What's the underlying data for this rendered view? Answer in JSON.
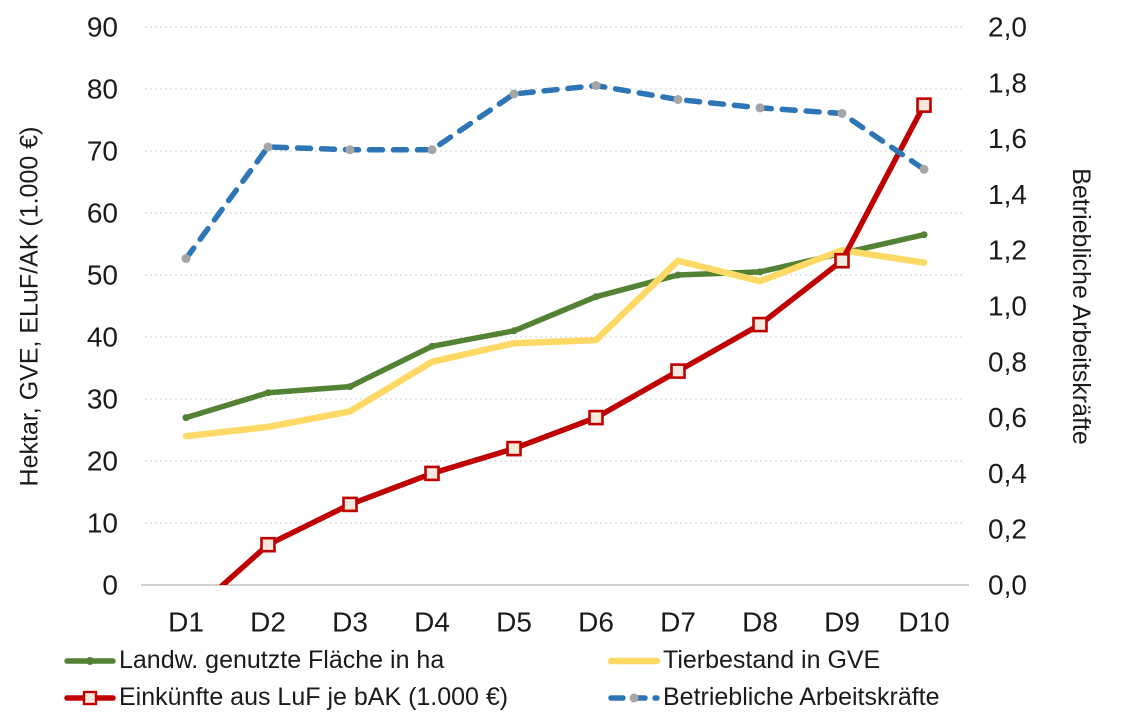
{
  "chart_data": {
    "type": "line",
    "categories": [
      "D1",
      "D2",
      "D3",
      "D4",
      "D5",
      "D6",
      "D7",
      "D8",
      "D9",
      "D10"
    ],
    "series": [
      {
        "name": "Landw. genutzte Fläche in ha",
        "axis": "left",
        "color": "#548235",
        "line_style": "solid",
        "marker": "dot",
        "values": [
          27,
          31,
          32,
          38.5,
          41,
          46.5,
          50,
          50.5,
          53.5,
          56.5
        ]
      },
      {
        "name": "Tierbestand in GVE",
        "axis": "left",
        "color": "#FFD966",
        "line_style": "solid",
        "marker": "none",
        "values": [
          24,
          25.5,
          28,
          36,
          39,
          39.5,
          52.3,
          49,
          54,
          52
        ]
      },
      {
        "name": "Einkünfte aus LuF je bAK (1.000 €)",
        "axis": "left",
        "color": "#C00000",
        "line_style": "solid",
        "marker": "square",
        "marker_fill": "#F5E9DE",
        "values": [
          -5.3,
          6.5,
          13,
          18,
          22,
          27,
          34.5,
          42,
          52.3,
          77.4
        ]
      },
      {
        "name": "Betriebliche Arbeitskräfte",
        "axis": "right",
        "color": "#2E75B6",
        "line_style": "dashed",
        "marker": "gray-dot",
        "marker_color": "#A6A6A6",
        "values": [
          1.17,
          1.57,
          1.56,
          1.56,
          1.76,
          1.79,
          1.74,
          1.71,
          1.69,
          1.49
        ]
      }
    ],
    "left_axis": {
      "title": "Hektar, GVE, ELuF/AK (1.000 €)",
      "min": 0,
      "max": 90,
      "step": 10,
      "tick_labels": [
        "0",
        "10",
        "20",
        "30",
        "40",
        "50",
        "60",
        "70",
        "80",
        "90"
      ]
    },
    "right_axis": {
      "title": "Betriebliche Arbeitskräfte",
      "min": 0.0,
      "max": 2.0,
      "step": 0.2,
      "tick_labels": [
        "0,0",
        "0,2",
        "0,4",
        "0,6",
        "0,8",
        "1,0",
        "1,2",
        "1,4",
        "1,6",
        "1,8",
        "2,0"
      ]
    },
    "grid": {
      "gridline_color": "#D9D9D9",
      "axis_line_color": "#BFBFBF"
    },
    "legend": {
      "position": "bottom",
      "columns": 2
    }
  }
}
